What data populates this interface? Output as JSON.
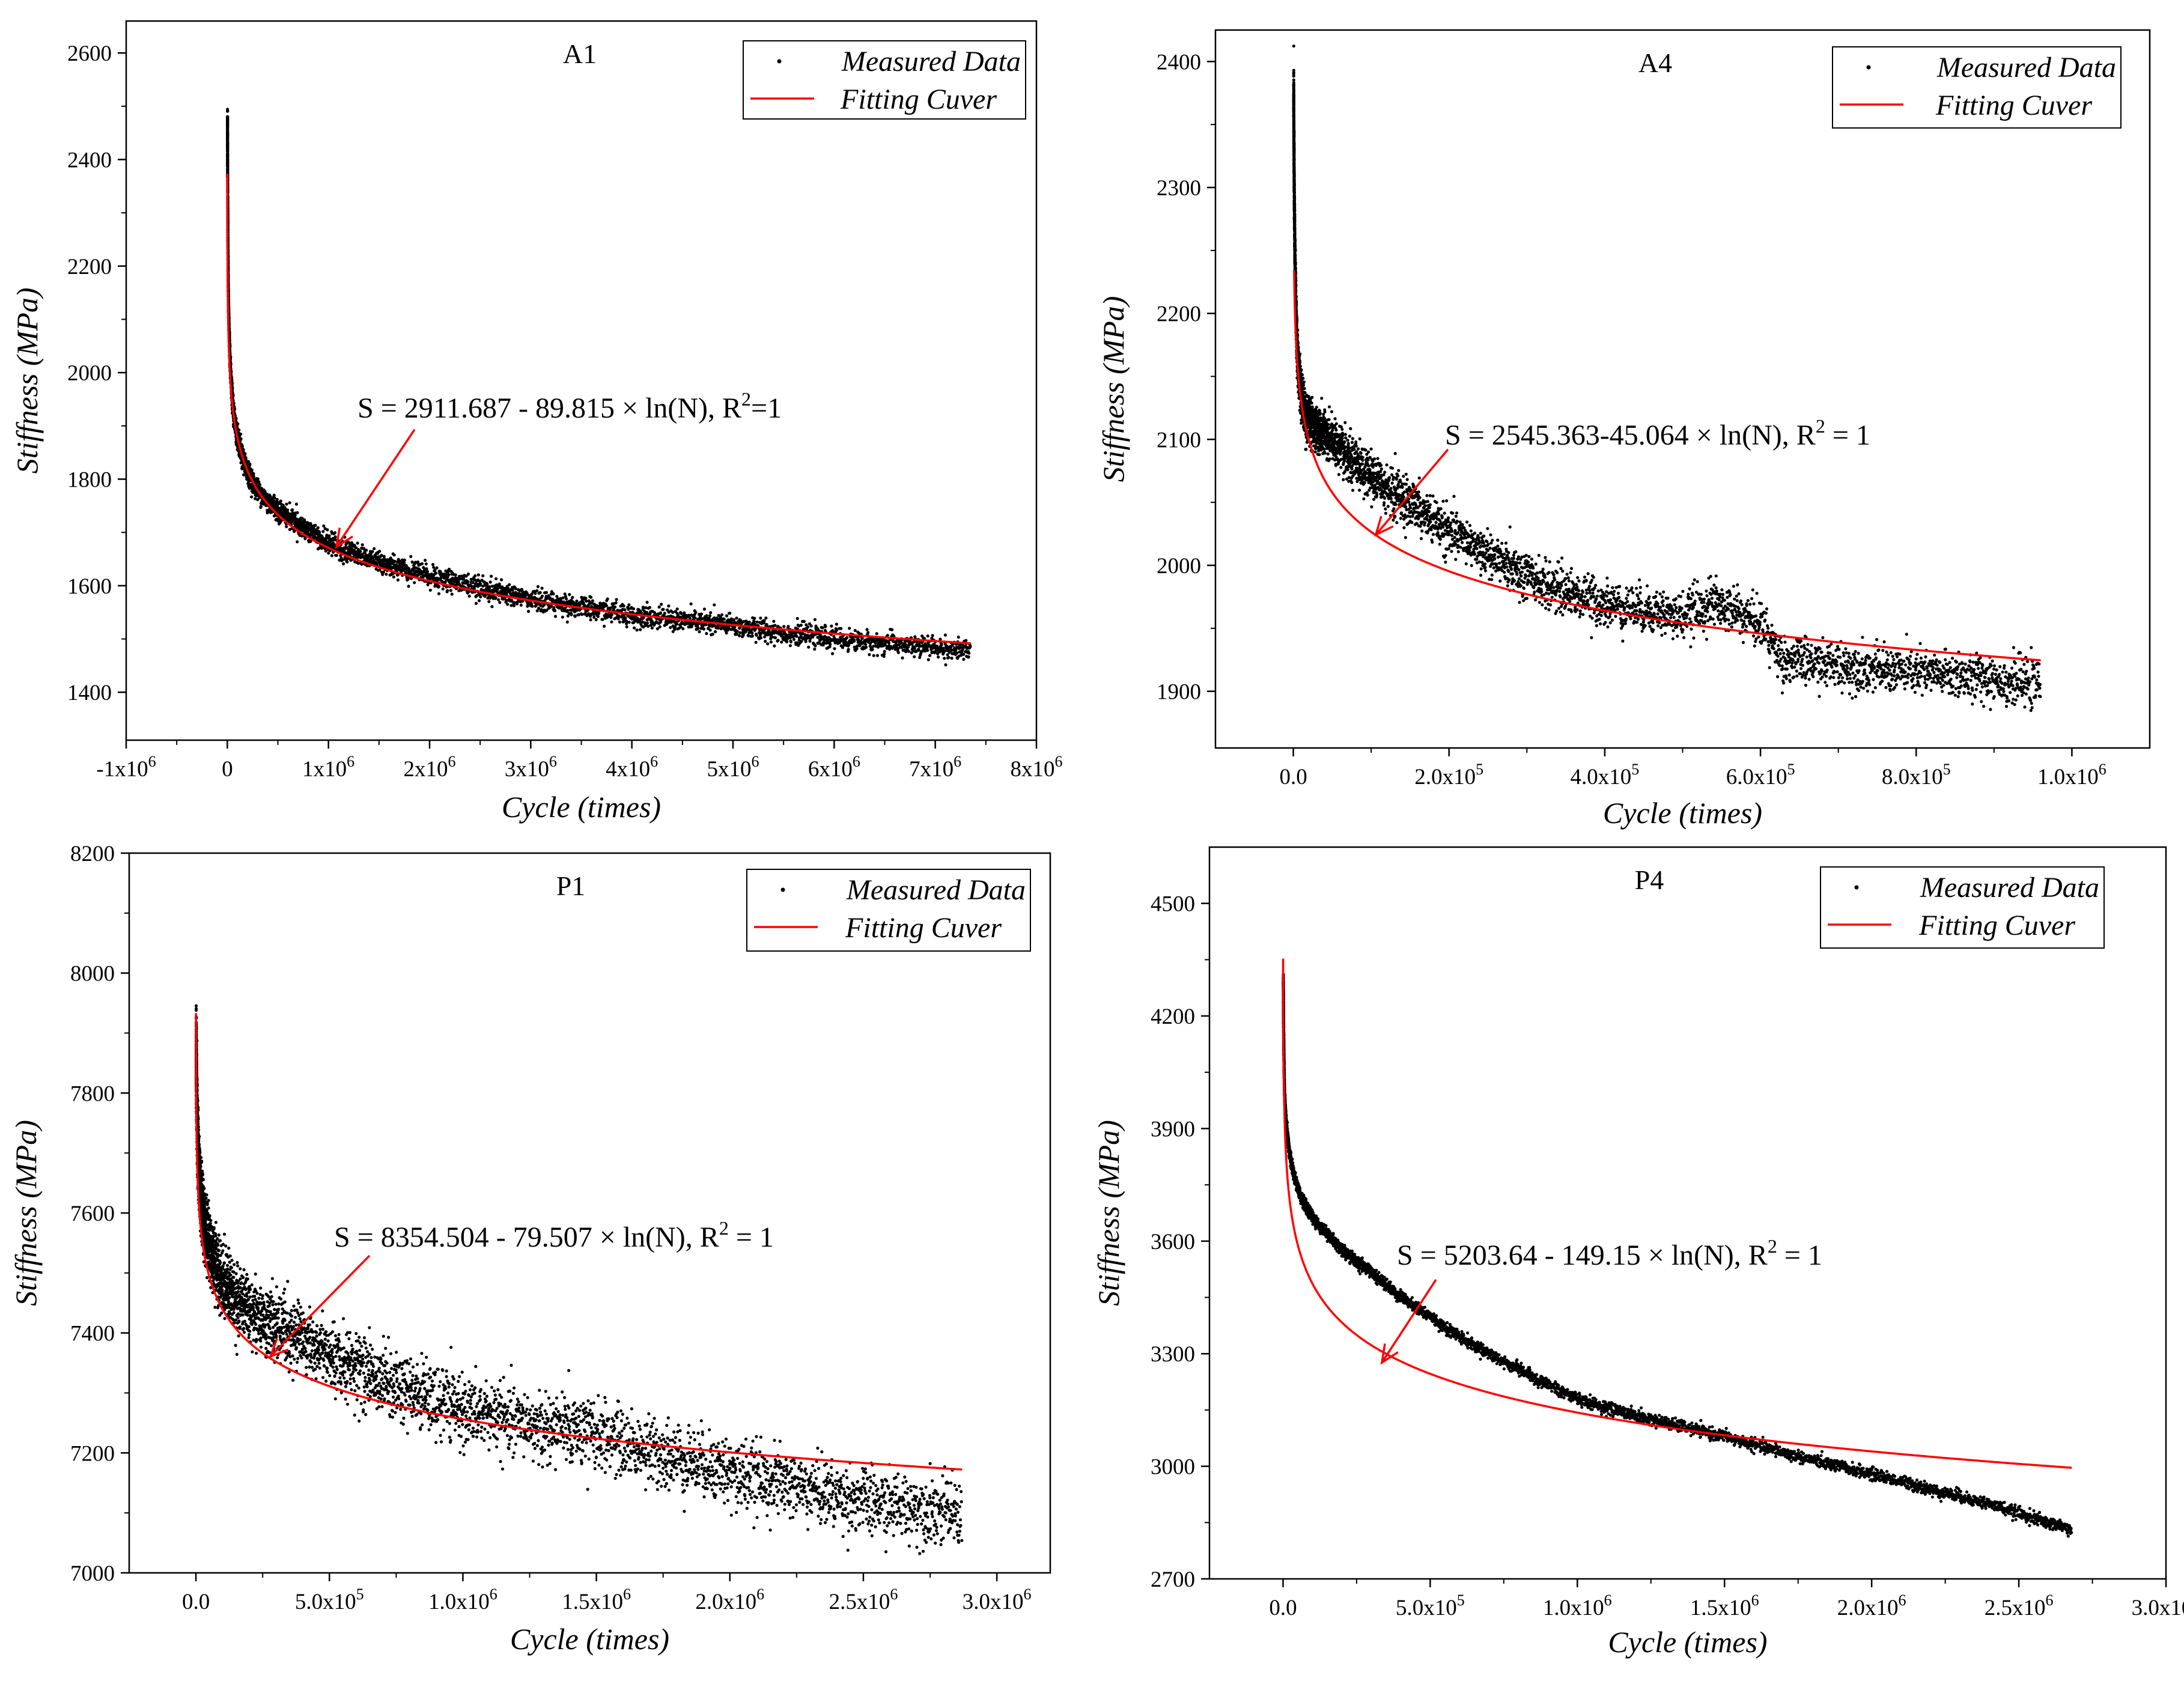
{
  "chart_data": [
    {
      "id": "A1",
      "type": "scatter",
      "title": "A1",
      "xlabel": "Cycle (times)",
      "ylabel": "Stiffness (MPa)",
      "xlim": [
        -1000000,
        8000000
      ],
      "ylim": [
        1310,
        2660
      ],
      "xticks": [
        {
          "value": -1000000,
          "mant": "-1x10",
          "exp": "6"
        },
        {
          "value": 0,
          "mant": "0",
          "exp": ""
        },
        {
          "value": 1000000,
          "mant": "1x10",
          "exp": "6"
        },
        {
          "value": 2000000,
          "mant": "2x10",
          "exp": "6"
        },
        {
          "value": 3000000,
          "mant": "3x10",
          "exp": "6"
        },
        {
          "value": 4000000,
          "mant": "4x10",
          "exp": "6"
        },
        {
          "value": 5000000,
          "mant": "5x10",
          "exp": "6"
        },
        {
          "value": 6000000,
          "mant": "6x10",
          "exp": "6"
        },
        {
          "value": 7000000,
          "mant": "7x10",
          "exp": "6"
        },
        {
          "value": 8000000,
          "mant": "8x10",
          "exp": "6"
        }
      ],
      "yticks": [
        1400,
        1600,
        1800,
        2000,
        2200,
        2400,
        2600
      ],
      "legend": {
        "position": "top-right",
        "entries": [
          "Measured Data",
          "Fitting Cuver"
        ]
      },
      "equation": {
        "prefix": "S = 2911.687 - 89.815 × ln(N), R",
        "sup": "2",
        "suffix": "=1"
      },
      "fit": {
        "a": 2911.687,
        "b": 89.815,
        "n_min": 400,
        "n_max": 7350000
      },
      "measured_points": [
        [
          2000,
          2480
        ],
        [
          10000,
          2150
        ],
        [
          30000,
          2010
        ],
        [
          60000,
          1930
        ],
        [
          120000,
          1860
        ],
        [
          300000,
          1780
        ],
        [
          600000,
          1730
        ],
        [
          1000000,
          1680
        ],
        [
          2000000,
          1620
        ],
        [
          3000000,
          1575
        ],
        [
          4000000,
          1545
        ],
        [
          5000000,
          1525
        ],
        [
          6000000,
          1500
        ],
        [
          7350000,
          1478
        ]
      ],
      "noise": 10
    },
    {
      "id": "A4",
      "type": "scatter",
      "title": "A4",
      "xlabel": "Cycle (times)",
      "ylabel": "Stiffness (MPa)",
      "xlim": [
        -100000,
        1100000
      ],
      "ylim": [
        1855,
        2425
      ],
      "xticks": [
        {
          "value": 0,
          "mant": "0.0",
          "exp": ""
        },
        {
          "value": 200000,
          "mant": "2.0x10",
          "exp": "5"
        },
        {
          "value": 400000,
          "mant": "4.0x10",
          "exp": "5"
        },
        {
          "value": 600000,
          "mant": "6.0x10",
          "exp": "5"
        },
        {
          "value": 800000,
          "mant": "8.0x10",
          "exp": "5"
        },
        {
          "value": 1000000,
          "mant": "1.0x10",
          "exp": "6"
        }
      ],
      "yticks": [
        1900,
        2000,
        2100,
        2200,
        2300,
        2400
      ],
      "legend": {
        "position": "top-right",
        "entries": [
          "Measured Data",
          "Fitting Cuver"
        ]
      },
      "equation": {
        "prefix": "S = 2545.363-45.064 × ln(N), R",
        "sup": "2",
        "suffix": " = 1"
      },
      "fit": {
        "a": 2545.363,
        "b": 45.064,
        "n_min": 1000,
        "n_max": 960000
      },
      "measured_points": [
        [
          500,
          2380
        ],
        [
          2000,
          2250
        ],
        [
          5000,
          2170
        ],
        [
          15000,
          2120
        ],
        [
          50000,
          2100
        ],
        [
          100000,
          2070
        ],
        [
          150000,
          2050
        ],
        [
          250000,
          2010
        ],
        [
          300000,
          1990
        ],
        [
          400000,
          1970
        ],
        [
          500000,
          1960
        ],
        [
          540000,
          1970
        ],
        [
          600000,
          1955
        ],
        [
          630000,
          1925
        ],
        [
          700000,
          1920
        ],
        [
          800000,
          1915
        ],
        [
          900000,
          1910
        ],
        [
          960000,
          1905
        ]
      ],
      "noise": 9
    },
    {
      "id": "P1",
      "type": "scatter",
      "title": "P1",
      "xlabel": "Cycle (times)",
      "ylabel": "Stiffness (MPa)",
      "xlim": [
        -250000,
        3200000
      ],
      "ylim": [
        7000,
        8200
      ],
      "xticks": [
        {
          "value": 0,
          "mant": "0.0",
          "exp": ""
        },
        {
          "value": 500000,
          "mant": "5.0x10",
          "exp": "5"
        },
        {
          "value": 1000000,
          "mant": "1.0x10",
          "exp": "6"
        },
        {
          "value": 1500000,
          "mant": "1.5x10",
          "exp": "6"
        },
        {
          "value": 2000000,
          "mant": "2.0x10",
          "exp": "6"
        },
        {
          "value": 2500000,
          "mant": "2.5x10",
          "exp": "6"
        },
        {
          "value": 3000000,
          "mant": "3.0x10",
          "exp": "6"
        }
      ],
      "yticks": [
        7000,
        7200,
        7400,
        7600,
        7800,
        8000,
        8200
      ],
      "legend": {
        "position": "top-right",
        "entries": [
          "Measured Data",
          "Fitting Cuver"
        ]
      },
      "equation": {
        "prefix": "S = 8354.504 - 79.507 × ln(N), R",
        "sup": "2",
        "suffix": " = 1"
      },
      "fit": {
        "a": 8354.504,
        "b": 79.507,
        "n_min": 200,
        "n_max": 2870000
      },
      "measured_points": [
        [
          1000,
          7880
        ],
        [
          5000,
          7750
        ],
        [
          20000,
          7620
        ],
        [
          50000,
          7550
        ],
        [
          100000,
          7490
        ],
        [
          200000,
          7440
        ],
        [
          400000,
          7390
        ],
        [
          600000,
          7340
        ],
        [
          800000,
          7300
        ],
        [
          1000000,
          7270
        ],
        [
          1500000,
          7230
        ],
        [
          2000000,
          7170
        ],
        [
          2500000,
          7120
        ],
        [
          2870000,
          7100
        ]
      ],
      "noise": 28
    },
    {
      "id": "P4",
      "type": "scatter",
      "title": "P4",
      "xlabel": "Cycle (times)",
      "ylabel": "Stiffness (MPa)",
      "xlim": [
        -250000,
        3000000
      ],
      "ylim": [
        2700,
        4650
      ],
      "xticks": [
        {
          "value": 0,
          "mant": "0.0",
          "exp": ""
        },
        {
          "value": 500000,
          "mant": "5.0x10",
          "exp": "5"
        },
        {
          "value": 1000000,
          "mant": "1.0x10",
          "exp": "6"
        },
        {
          "value": 1500000,
          "mant": "1.5x10",
          "exp": "6"
        },
        {
          "value": 2000000,
          "mant": "2.0x10",
          "exp": "6"
        },
        {
          "value": 2500000,
          "mant": "2.5x10",
          "exp": "6"
        },
        {
          "value": 3000000,
          "mant": "3.0x10",
          "exp": "6"
        }
      ],
      "yticks": [
        2700,
        3000,
        3300,
        3600,
        3900,
        4200,
        4500
      ],
      "legend": {
        "position": "top-right",
        "entries": [
          "Measured Data",
          "Fitting Cuver"
        ]
      },
      "equation": {
        "prefix": "S = 5203.64 - 149.15 × ln(N), R",
        "sup": "2",
        "suffix": " = 1"
      },
      "fit": {
        "a": 5203.64,
        "b": 149.15,
        "n_min": 300,
        "n_max": 2680000
      },
      "measured_points": [
        [
          1000,
          4300
        ],
        [
          5000,
          4000
        ],
        [
          20000,
          3850
        ],
        [
          60000,
          3720
        ],
        [
          150000,
          3620
        ],
        [
          300000,
          3520
        ],
        [
          500000,
          3400
        ],
        [
          800000,
          3260
        ],
        [
          1000000,
          3180
        ],
        [
          1500000,
          3080
        ],
        [
          2000000,
          2980
        ],
        [
          2400000,
          2900
        ],
        [
          2600000,
          2850
        ],
        [
          2680000,
          2830
        ]
      ],
      "noise": 8
    }
  ]
}
